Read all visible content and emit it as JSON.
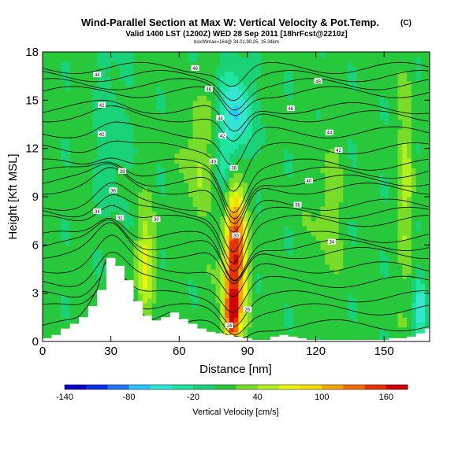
{
  "chart_data": {
    "type": "heatmap",
    "title": "Wind-Parallel Section at Max W: Vertical Velocity & Pot.Temp.",
    "title_badge": "(C)",
    "subtitle": "Valid 1400 LST (1200Z) WED 28 Sep 2011 [18hrFcst@2210z]",
    "small_text": "box/Wmax=164@ 34.01,90.25, 15.34km",
    "xlabel": "Distance [nm]",
    "ylabel": "Height [Kft MSL]",
    "xlim": [
      0,
      170
    ],
    "ylim": [
      0,
      18
    ],
    "x_ticks": [
      0,
      30,
      60,
      90,
      120,
      150
    ],
    "y_ticks": [
      0,
      3,
      6,
      9,
      12,
      15,
      18
    ],
    "colorbar": {
      "label": "Vertical Velocity [cm/s]",
      "tick_labels": [
        -140,
        -80,
        -20,
        40,
        100,
        160
      ],
      "bins": [
        -140,
        -120,
        -100,
        -80,
        -60,
        -40,
        -20,
        0,
        20,
        40,
        60,
        80,
        100,
        120,
        140,
        160,
        180
      ],
      "colors": [
        "#0a00c8",
        "#0a32e6",
        "#1e78ff",
        "#28c8ff",
        "#32e6d2",
        "#1ee6a0",
        "#19d278",
        "#28c83c",
        "#78dc28",
        "#b4f01e",
        "#eaf50a",
        "#f5dc00",
        "#f5a500",
        "#f06e00",
        "#e63200",
        "#d20000"
      ]
    },
    "terrain": {
      "x": [
        0,
        4,
        8,
        12,
        16,
        20,
        24,
        28,
        32,
        36,
        40,
        44,
        48,
        52,
        56,
        60,
        64,
        68,
        72,
        76,
        80,
        84,
        88,
        92,
        96,
        100,
        104,
        108,
        112,
        116,
        120,
        124,
        128,
        132,
        136,
        140,
        144,
        148,
        152,
        156,
        160,
        164,
        168,
        170
      ],
      "height_kft": [
        0.2,
        0.4,
        0.8,
        1.1,
        1.5,
        2.2,
        3.2,
        5.2,
        4.7,
        3.8,
        2.5,
        1.6,
        1.3,
        1.5,
        1.8,
        1.4,
        1.1,
        0.8,
        0.6,
        0.5,
        0.4,
        0.3,
        0.2,
        0.1,
        0.1,
        0.3,
        0.4,
        0.3,
        0.2,
        0.1,
        0.1,
        0.1,
        0.1,
        0.1,
        0.1,
        0.1,
        0.1,
        0.1,
        0.2,
        0.2,
        0.3,
        0.5,
        0.8,
        0.6
      ]
    },
    "vertical_velocity_features": [
      {
        "name": "updraft core",
        "x_center": 84,
        "height_center_kft": 5.2,
        "x_halfwidth": 5,
        "height_halfwidth_kft": 4.5,
        "value_cms": 164
      },
      {
        "name": "updraft tail",
        "x_center": 83,
        "height_center_kft": 1.5,
        "x_halfwidth": 3,
        "height_halfwidth_kft": 1.5,
        "value_cms": 110
      },
      {
        "name": "upper downdraft",
        "x_center": 86,
        "height_center_kft": 14,
        "x_halfwidth": 6,
        "height_halfwidth_kft": 3,
        "value_cms": -70
      },
      {
        "name": "downdraft band",
        "x_center": 80,
        "height_center_kft": 10,
        "x_halfwidth": 4,
        "height_halfwidth_kft": 6,
        "value_cms": -35
      },
      {
        "name": "updraft left",
        "x_center": 45,
        "height_center_kft": 5,
        "x_halfwidth": 4,
        "height_halfwidth_kft": 3,
        "value_cms": 55
      },
      {
        "name": "updraft mid",
        "x_center": 68,
        "height_center_kft": 11,
        "x_halfwidth": 5,
        "height_halfwidth_kft": 4,
        "value_cms": 35
      },
      {
        "name": "downdraft left",
        "x_center": 30,
        "height_center_kft": 13,
        "x_halfwidth": 6,
        "height_halfwidth_kft": 5,
        "value_cms": -25
      },
      {
        "name": "updraft right",
        "x_center": 125,
        "height_center_kft": 8,
        "x_halfwidth": 6,
        "height_halfwidth_kft": 4,
        "value_cms": 25
      },
      {
        "name": "updraft edge",
        "x_center": 160,
        "height_center_kft": 10,
        "x_halfwidth": 3,
        "height_halfwidth_kft": 6,
        "value_cms": 40
      },
      {
        "name": "downdraft edge",
        "x_center": 166,
        "height_center_kft": 2,
        "x_halfwidth": 3,
        "height_halfwidth_kft": 2,
        "value_cms": -60
      }
    ],
    "potential_temperature_contour_labels": [
      {
        "x": 24,
        "y": 16.6,
        "label": "44"
      },
      {
        "x": 26,
        "y": 14.7,
        "label": "42"
      },
      {
        "x": 26,
        "y": 12.9,
        "label": "40"
      },
      {
        "x": 35,
        "y": 10.6,
        "label": "38"
      },
      {
        "x": 31,
        "y": 9.4,
        "label": "36"
      },
      {
        "x": 24,
        "y": 8.1,
        "label": "34"
      },
      {
        "x": 34,
        "y": 7.7,
        "label": "32"
      },
      {
        "x": 50,
        "y": 7.6,
        "label": "30"
      },
      {
        "x": 67,
        "y": 17.0,
        "label": "48"
      },
      {
        "x": 73,
        "y": 15.7,
        "label": "46"
      },
      {
        "x": 78,
        "y": 13.9,
        "label": "44"
      },
      {
        "x": 79,
        "y": 12.8,
        "label": "42"
      },
      {
        "x": 75,
        "y": 11.2,
        "label": "40"
      },
      {
        "x": 84,
        "y": 10.8,
        "label": "38"
      },
      {
        "x": 85,
        "y": 6.6,
        "label": "30"
      },
      {
        "x": 90,
        "y": 2.0,
        "label": "26"
      },
      {
        "x": 82,
        "y": 1.0,
        "label": "24"
      },
      {
        "x": 121,
        "y": 16.2,
        "label": "48"
      },
      {
        "x": 109,
        "y": 14.5,
        "label": "46"
      },
      {
        "x": 126,
        "y": 13.0,
        "label": "44"
      },
      {
        "x": 130,
        "y": 11.9,
        "label": "42"
      },
      {
        "x": 117,
        "y": 10.0,
        "label": "40"
      },
      {
        "x": 112,
        "y": 8.5,
        "label": "38"
      },
      {
        "x": 127,
        "y": 6.2,
        "label": "34"
      }
    ]
  }
}
